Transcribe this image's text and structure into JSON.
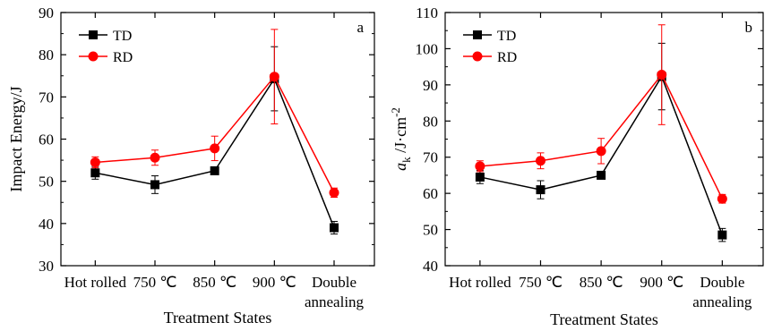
{
  "chart_data": [
    {
      "type": "line",
      "panel_label": "a",
      "categories": [
        "Hot rolled",
        "750 ℃",
        "850 ℃",
        "900 ℃",
        "Double annealing"
      ],
      "category_lines": [
        [
          "Hot rolled"
        ],
        [
          "750 ℃"
        ],
        [
          "850 ℃"
        ],
        [
          "900 ℃"
        ],
        [
          "Double",
          "annealing"
        ]
      ],
      "xlabel": "Treatment States",
      "ylabel": "Impact Energy/J",
      "ylim": [
        30,
        90
      ],
      "yticks": [
        30,
        40,
        50,
        60,
        70,
        80,
        90
      ],
      "legend_position": "top-left",
      "series": [
        {
          "name": "TD",
          "color": "#000000",
          "marker": "square",
          "values": [
            52,
            49.2,
            52.5,
            74.3,
            39
          ],
          "errors": [
            1.5,
            2.1,
            0.8,
            7.6,
            1.5
          ]
        },
        {
          "name": "RD",
          "color": "#ff0000",
          "marker": "circle",
          "values": [
            54.5,
            55.6,
            57.8,
            74.8,
            47.3
          ],
          "errors": [
            1.3,
            1.8,
            2.9,
            11.2,
            1.1
          ]
        }
      ]
    },
    {
      "type": "line",
      "panel_label": "b",
      "categories": [
        "Hot rolled",
        "750 ℃",
        "850 ℃",
        "900 ℃",
        "Double annealing"
      ],
      "category_lines": [
        [
          "Hot rolled"
        ],
        [
          "750 ℃"
        ],
        [
          "850 ℃"
        ],
        [
          "900 ℃"
        ],
        [
          "Double",
          "annealing"
        ]
      ],
      "xlabel": "Treatment States",
      "ylabel": "ak/J·cm-2",
      "ylim": [
        40,
        110
      ],
      "yticks": [
        40,
        50,
        60,
        70,
        80,
        90,
        100,
        110
      ],
      "legend_position": "top-left",
      "series": [
        {
          "name": "TD",
          "color": "#000000",
          "marker": "square",
          "values": [
            64.5,
            61,
            65,
            92.3,
            48.5
          ],
          "errors": [
            1.8,
            2.5,
            1,
            9.2,
            1.8
          ]
        },
        {
          "name": "RD",
          "color": "#ff0000",
          "marker": "circle",
          "values": [
            67.5,
            69,
            71.7,
            92.8,
            58.5
          ],
          "errors": [
            1.5,
            2.2,
            3.5,
            13.8,
            1.2
          ]
        }
      ]
    }
  ]
}
